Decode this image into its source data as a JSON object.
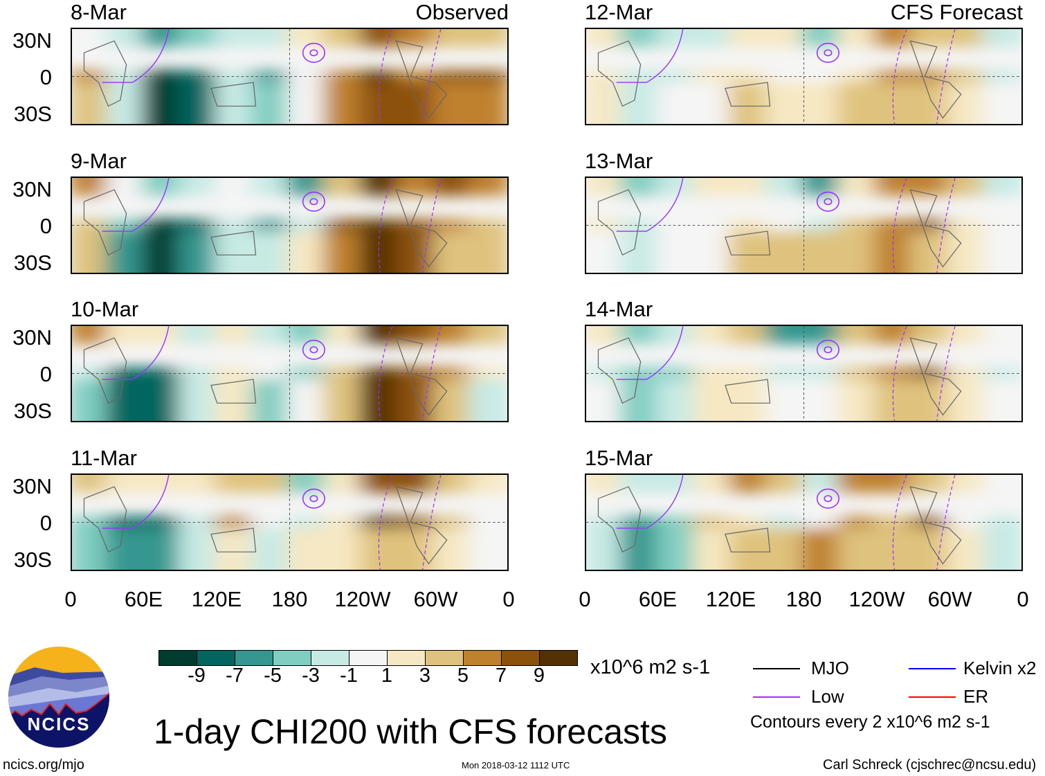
{
  "title": "1-day CHI200 with CFS forecasts",
  "units": "x10^6 m2 s-1",
  "observed_label": "Observed",
  "forecast_label": "CFS Forecast",
  "lat_labels": [
    "30N",
    "0",
    "30S"
  ],
  "lon_labels": [
    "0",
    "60E",
    "120E",
    "180",
    "120W",
    "60W",
    "0"
  ],
  "colorbar": {
    "colors": [
      "#013c31",
      "#02665f",
      "#35978f",
      "#80cdc1",
      "#c7eae5",
      "#f5f5f5",
      "#f6e8c3",
      "#dfc27d",
      "#bf812d",
      "#8c510a",
      "#543005"
    ],
    "labels": [
      "-9",
      "-7",
      "-5",
      "-3",
      "-1",
      "1",
      "3",
      "5",
      "7",
      "9"
    ]
  },
  "legend": {
    "items": [
      {
        "label": "MJO",
        "color": "#000000"
      },
      {
        "label": "Low",
        "color": "#9b30ff"
      },
      {
        "label": "Kelvin x2",
        "color": "#0000ff"
      },
      {
        "label": "ER",
        "color": "#ff0000"
      }
    ],
    "contour_note": "Contours every 2 x10^6 m2 s-1"
  },
  "footer": {
    "site": "ncics.org/mjo",
    "timestamp": "Mon 2018-03-12 1112 UTC",
    "credit": "Carl Schreck (cjschrec@ncsu.edu)",
    "logo_text": "NCICS"
  },
  "field_grid": {
    "lon_bin_start_deg": [
      0,
      30,
      60,
      90,
      120,
      150,
      180,
      210,
      240,
      270,
      300,
      330
    ],
    "rows": [
      "north",
      "equator",
      "south"
    ]
  },
  "panels": [
    {
      "date": "8-Mar",
      "field": [
        [
          0,
          -2,
          -6,
          -5,
          -3,
          -3,
          1,
          3,
          8,
          5,
          3,
          3
        ],
        [
          5,
          -3,
          -10,
          -9,
          -3,
          -6,
          -1,
          6,
          9,
          6,
          7,
          7
        ],
        [
          4,
          -3,
          -10,
          -9,
          -3,
          -5,
          -1,
          6,
          8,
          8,
          5,
          5
        ]
      ]
    },
    {
      "date": "9-Mar",
      "field": [
        [
          5,
          -1,
          -4,
          -3,
          -1,
          -2,
          -7,
          3,
          9,
          6,
          8,
          6
        ],
        [
          3,
          -5,
          -10,
          -8,
          -3,
          -6,
          -3,
          7,
          10,
          7,
          6,
          3
        ],
        [
          3,
          -6,
          -10,
          -7,
          -2,
          -2,
          1,
          5,
          9,
          7,
          4,
          4
        ]
      ]
    },
    {
      "date": "10-Mar",
      "field": [
        [
          5,
          2,
          1,
          -2,
          1,
          -3,
          -4,
          2,
          9,
          7,
          5,
          3
        ],
        [
          -2,
          -9,
          -9,
          -3,
          1,
          -1,
          -4,
          3,
          9,
          7,
          6,
          1
        ],
        [
          -4,
          -9,
          -8,
          -3,
          1,
          -4,
          0,
          4,
          9,
          8,
          3,
          -2
        ]
      ]
    },
    {
      "date": "11-Mar",
      "field": [
        [
          3,
          1,
          1,
          2,
          3,
          4,
          -4,
          2,
          8,
          7,
          4,
          2
        ],
        [
          -4,
          -8,
          -8,
          -3,
          5,
          -1,
          -2,
          2,
          9,
          8,
          4,
          0
        ],
        [
          -5,
          -7,
          -7,
          -2,
          1,
          -3,
          1,
          2,
          3,
          4,
          1,
          -1
        ]
      ]
    },
    {
      "date": "12-Mar",
      "field": [
        [
          2,
          -5,
          -3,
          -2,
          2,
          1,
          -5,
          1,
          5,
          4,
          3,
          -2
        ],
        [
          1,
          -3,
          -2,
          1,
          1,
          -1,
          -1,
          1,
          5,
          6,
          3,
          -2
        ],
        [
          1,
          -2,
          -1,
          -1,
          3,
          2,
          1,
          4,
          3,
          4,
          1,
          -1
        ]
      ]
    },
    {
      "date": "13-Mar",
      "field": [
        [
          1,
          -4,
          -3,
          1,
          2,
          -3,
          -7,
          1,
          5,
          5,
          3,
          -2
        ],
        [
          1,
          -3,
          -1,
          -1,
          1,
          -1,
          -2,
          3,
          6,
          8,
          2,
          -1
        ],
        [
          0,
          -2,
          -1,
          0,
          3,
          3,
          3,
          4,
          5,
          4,
          1,
          0
        ]
      ]
    },
    {
      "date": "14-Mar",
      "field": [
        [
          1,
          -4,
          -2,
          2,
          3,
          -6,
          -6,
          4,
          6,
          4,
          2,
          -1
        ],
        [
          -2,
          -5,
          -4,
          1,
          1,
          -2,
          -2,
          3,
          6,
          7,
          2,
          -2
        ],
        [
          -1,
          -5,
          -3,
          2,
          2,
          -1,
          -1,
          2,
          4,
          4,
          1,
          -1
        ]
      ]
    },
    {
      "date": "15-Mar",
      "field": [
        [
          1,
          -3,
          -2,
          2,
          6,
          3,
          -2,
          5,
          6,
          4,
          2,
          -1
        ],
        [
          -2,
          -6,
          -5,
          3,
          1,
          -3,
          -1,
          6,
          4,
          7,
          -1,
          -2
        ],
        [
          -2,
          -7,
          -4,
          1,
          3,
          4,
          5,
          3,
          4,
          4,
          1,
          -2
        ]
      ]
    }
  ]
}
